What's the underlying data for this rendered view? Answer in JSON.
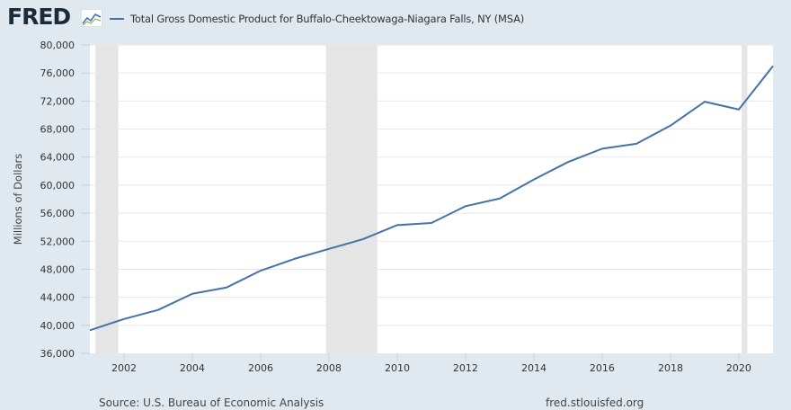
{
  "header": {
    "logo_text": "FRED"
  },
  "footer": {
    "source": "Source: U.S. Bureau of Economic Analysis",
    "url": "fred.stlouisfed.org"
  },
  "colors": {
    "background": "#e1e9f0",
    "plot_background": "#ffffff",
    "series_line": "#4572a7",
    "recession_shading": "#e5e5e5",
    "gridline": "#e8e8e8"
  },
  "chart_data": {
    "type": "line",
    "title": "",
    "xlabel": "",
    "ylabel": "Millions of Dollars",
    "x_tick_labels": [
      "2002",
      "2004",
      "2006",
      "2008",
      "2010",
      "2012",
      "2014",
      "2016",
      "2018",
      "2020"
    ],
    "y_tick_labels": [
      "36,000",
      "40,000",
      "44,000",
      "48,000",
      "52,000",
      "56,000",
      "60,000",
      "64,000",
      "68,000",
      "72,000",
      "76,000",
      "80,000"
    ],
    "xlim": [
      "2001-01-01",
      "2021-01-01"
    ],
    "ylim": [
      36000,
      80000
    ],
    "grid": "horizontal",
    "legend_position": "top-left",
    "recession_periods": [
      {
        "start": "2001-03-01",
        "end": "2001-11-01"
      },
      {
        "start": "2007-12-01",
        "end": "2009-06-01"
      },
      {
        "start": "2020-02-01",
        "end": "2020-04-01"
      }
    ],
    "series": [
      {
        "name": "Total Gross Domestic Product for Buffalo-Cheektowaga-Niagara Falls, NY (MSA)",
        "color": "#4572a7",
        "x": [
          "2001-01-01",
          "2002-01-01",
          "2003-01-01",
          "2004-01-01",
          "2005-01-01",
          "2006-01-01",
          "2007-01-01",
          "2008-01-01",
          "2009-01-01",
          "2010-01-01",
          "2011-01-01",
          "2012-01-01",
          "2013-01-01",
          "2014-01-01",
          "2015-01-01",
          "2016-01-01",
          "2017-01-01",
          "2018-01-01",
          "2019-01-01",
          "2020-01-01",
          "2021-01-01"
        ],
        "y": [
          39300,
          40900,
          42200,
          44500,
          45400,
          47800,
          49500,
          50900,
          52300,
          54300,
          54600,
          57000,
          58100,
          60800,
          63300,
          65200,
          65900,
          68500,
          71900,
          70800,
          77000
        ]
      }
    ]
  }
}
